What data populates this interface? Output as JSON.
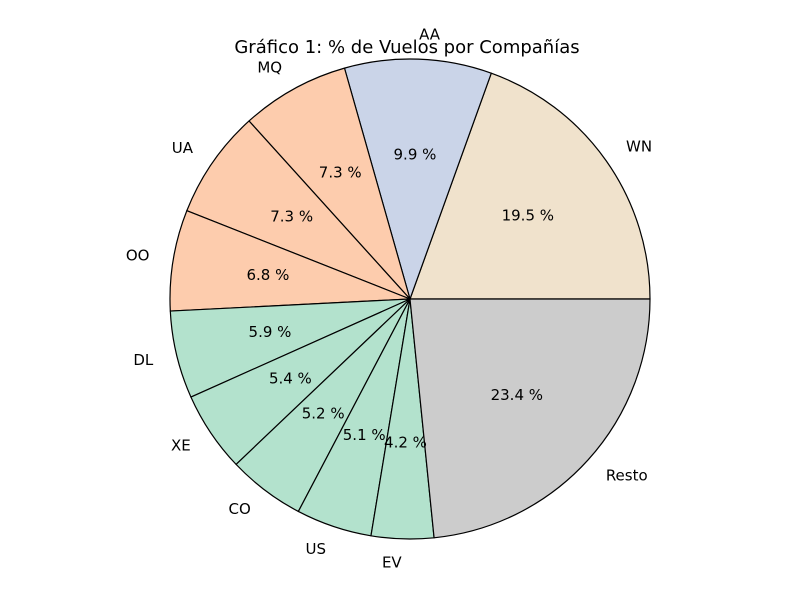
{
  "chart_data": {
    "type": "pie",
    "title": "Gráfico 1: % de Vuelos por Compañías",
    "slices": [
      {
        "label": "WN",
        "value": 19.5,
        "pct_label": "19.5 %",
        "color": "#F0E2CC"
      },
      {
        "label": "AA",
        "value": 9.9,
        "pct_label": "9.9 %",
        "color": "#CAD4E8"
      },
      {
        "label": "MQ",
        "value": 7.3,
        "pct_label": "7.3 %",
        "color": "#FDCCAD"
      },
      {
        "label": "UA",
        "value": 7.3,
        "pct_label": "7.3 %",
        "color": "#FDCCAD"
      },
      {
        "label": "OO",
        "value": 6.8,
        "pct_label": "6.8 %",
        "color": "#FDCCAD"
      },
      {
        "label": "DL",
        "value": 5.9,
        "pct_label": "5.9 %",
        "color": "#B3E2CD"
      },
      {
        "label": "XE",
        "value": 5.4,
        "pct_label": "5.4 %",
        "color": "#B3E2CD"
      },
      {
        "label": "CO",
        "value": 5.2,
        "pct_label": "5.2 %",
        "color": "#B3E2CD"
      },
      {
        "label": "US",
        "value": 5.1,
        "pct_label": "5.1 %",
        "color": "#B3E2CD"
      },
      {
        "label": "EV",
        "value": 4.2,
        "pct_label": "4.2 %",
        "color": "#B3E2CD"
      },
      {
        "label": "Resto",
        "value": 23.4,
        "pct_label": "23.4 %",
        "color": "#CCCCCC"
      }
    ],
    "start_angle_deg": 0,
    "direction": "counterclockwise",
    "edge_color": "#000000",
    "legend": "none"
  }
}
